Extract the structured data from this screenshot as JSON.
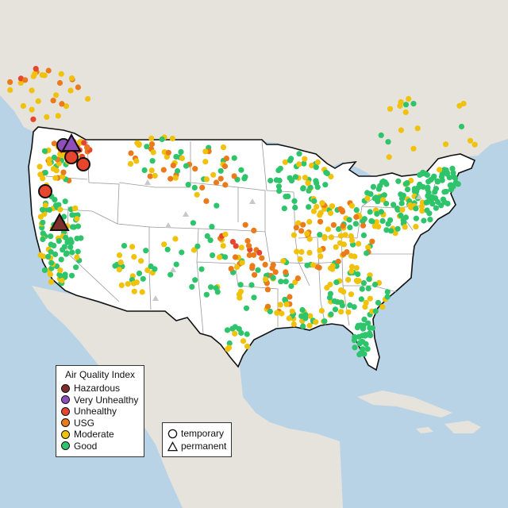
{
  "legend": {
    "title": "Air Quality Index",
    "categories": [
      {
        "label": "Hazardous",
        "color": "#7e2d2b"
      },
      {
        "label": "Very Unhealthy",
        "color": "#8e4fba"
      },
      {
        "label": "Unhealthy",
        "color": "#e8452f"
      },
      {
        "label": "USG",
        "color": "#ea7a1a"
      },
      {
        "label": "Moderate",
        "color": "#f0c20b"
      },
      {
        "label": "Good",
        "color": "#2ec46b"
      }
    ]
  },
  "monitor_types": [
    {
      "label": "temporary",
      "symbol": "circle"
    },
    {
      "label": "permanent",
      "symbol": "triangle"
    }
  ],
  "map_colors": {
    "water": "#b9d3e6",
    "land": "#e6e3dd",
    "us_land": "#ffffff",
    "border": "#111111",
    "state_line": "#9a9a9a",
    "no_data": "#c8c8c8"
  }
}
